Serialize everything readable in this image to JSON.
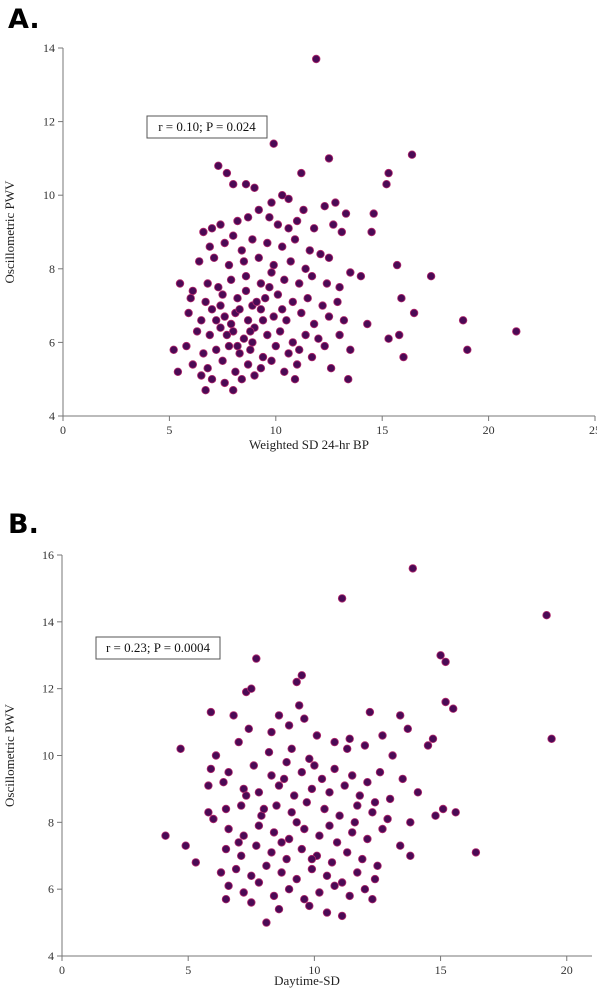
{
  "chart_data": [
    {
      "type": "scatter",
      "panel_label": "A.",
      "xlabel": "Weighted SD 24-hr BP",
      "ylabel": "Oscillometric PWV",
      "annotation": "r = 0.10; P = 0.024",
      "xlim": [
        0,
        25
      ],
      "ylim": [
        4,
        14
      ],
      "xticks": [
        0,
        5,
        10,
        15,
        20,
        25
      ],
      "yticks": [
        4,
        6,
        8,
        10,
        12,
        14
      ],
      "marker_fill": "#4b0a55",
      "marker_edge": "#b22a6e",
      "grid": false,
      "points": [
        [
          11.9,
          13.7
        ],
        [
          9.9,
          11.4
        ],
        [
          16.4,
          11.1
        ],
        [
          12.5,
          11.0
        ],
        [
          11.2,
          10.6
        ],
        [
          15.3,
          10.6
        ],
        [
          7.3,
          10.8
        ],
        [
          7.7,
          10.6
        ],
        [
          8.0,
          10.3
        ],
        [
          8.6,
          10.3
        ],
        [
          9.0,
          10.2
        ],
        [
          10.3,
          10.0
        ],
        [
          10.6,
          9.9
        ],
        [
          9.8,
          9.8
        ],
        [
          11.3,
          9.6
        ],
        [
          12.3,
          9.7
        ],
        [
          12.8,
          9.8
        ],
        [
          13.3,
          9.5
        ],
        [
          15.2,
          10.3
        ],
        [
          14.6,
          9.5
        ],
        [
          6.6,
          9.0
        ],
        [
          7.0,
          9.1
        ],
        [
          7.4,
          9.2
        ],
        [
          8.0,
          8.9
        ],
        [
          8.2,
          9.3
        ],
        [
          8.7,
          9.4
        ],
        [
          9.2,
          9.6
        ],
        [
          9.7,
          9.4
        ],
        [
          10.1,
          9.2
        ],
        [
          10.6,
          9.1
        ],
        [
          11.0,
          9.3
        ],
        [
          11.8,
          9.1
        ],
        [
          12.7,
          9.2
        ],
        [
          13.1,
          9.0
        ],
        [
          14.5,
          9.0
        ],
        [
          6.9,
          8.6
        ],
        [
          7.6,
          8.7
        ],
        [
          8.4,
          8.5
        ],
        [
          8.9,
          8.8
        ],
        [
          9.6,
          8.7
        ],
        [
          10.3,
          8.6
        ],
        [
          10.9,
          8.8
        ],
        [
          11.6,
          8.5
        ],
        [
          12.1,
          8.4
        ],
        [
          6.4,
          8.2
        ],
        [
          7.1,
          8.3
        ],
        [
          7.8,
          8.1
        ],
        [
          8.5,
          8.2
        ],
        [
          9.2,
          8.3
        ],
        [
          9.9,
          8.1
        ],
        [
          10.7,
          8.2
        ],
        [
          11.4,
          8.0
        ],
        [
          12.5,
          8.3
        ],
        [
          13.5,
          7.9
        ],
        [
          14.0,
          7.8
        ],
        [
          15.7,
          8.1
        ],
        [
          17.3,
          7.8
        ],
        [
          5.5,
          7.6
        ],
        [
          6.1,
          7.4
        ],
        [
          6.8,
          7.6
        ],
        [
          7.3,
          7.5
        ],
        [
          7.9,
          7.7
        ],
        [
          8.6,
          7.8
        ],
        [
          9.3,
          7.6
        ],
        [
          9.8,
          7.9
        ],
        [
          10.4,
          7.7
        ],
        [
          11.1,
          7.6
        ],
        [
          11.7,
          7.8
        ],
        [
          12.4,
          7.6
        ],
        [
          13.0,
          7.5
        ],
        [
          6.0,
          7.2
        ],
        [
          6.7,
          7.1
        ],
        [
          7.5,
          7.3
        ],
        [
          8.2,
          7.2
        ],
        [
          8.9,
          7.0
        ],
        [
          9.5,
          7.2
        ],
        [
          10.1,
          7.3
        ],
        [
          10.8,
          7.1
        ],
        [
          11.5,
          7.2
        ],
        [
          12.2,
          7.0
        ],
        [
          12.9,
          7.1
        ],
        [
          14.3,
          6.5
        ],
        [
          15.9,
          7.2
        ],
        [
          16.5,
          6.8
        ],
        [
          5.9,
          6.8
        ],
        [
          6.5,
          6.6
        ],
        [
          7.0,
          6.9
        ],
        [
          7.6,
          6.7
        ],
        [
          8.1,
          6.8
        ],
        [
          8.7,
          6.6
        ],
        [
          9.3,
          6.9
        ],
        [
          9.9,
          6.7
        ],
        [
          10.5,
          6.6
        ],
        [
          11.2,
          6.8
        ],
        [
          11.8,
          6.5
        ],
        [
          12.5,
          6.7
        ],
        [
          13.2,
          6.6
        ],
        [
          6.3,
          6.3
        ],
        [
          6.9,
          6.2
        ],
        [
          7.4,
          6.4
        ],
        [
          8.0,
          6.3
        ],
        [
          8.5,
          6.1
        ],
        [
          9.0,
          6.4
        ],
        [
          9.6,
          6.2
        ],
        [
          10.2,
          6.3
        ],
        [
          10.8,
          6.0
        ],
        [
          11.4,
          6.2
        ],
        [
          12.0,
          6.1
        ],
        [
          13.0,
          6.2
        ],
        [
          15.3,
          6.1
        ],
        [
          15.8,
          6.2
        ],
        [
          18.8,
          6.6
        ],
        [
          21.3,
          6.3
        ],
        [
          5.2,
          5.8
        ],
        [
          5.8,
          5.9
        ],
        [
          6.6,
          5.7
        ],
        [
          7.2,
          5.8
        ],
        [
          7.8,
          5.9
        ],
        [
          8.3,
          5.7
        ],
        [
          8.8,
          5.8
        ],
        [
          9.4,
          5.6
        ],
        [
          10.0,
          5.9
        ],
        [
          10.6,
          5.7
        ],
        [
          11.1,
          5.8
        ],
        [
          11.7,
          5.6
        ],
        [
          12.3,
          5.9
        ],
        [
          13.5,
          5.8
        ],
        [
          16.0,
          5.6
        ],
        [
          19.0,
          5.8
        ],
        [
          6.1,
          5.4
        ],
        [
          6.8,
          5.3
        ],
        [
          7.5,
          5.5
        ],
        [
          8.1,
          5.2
        ],
        [
          8.7,
          5.4
        ],
        [
          9.3,
          5.3
        ],
        [
          9.8,
          5.5
        ],
        [
          10.4,
          5.2
        ],
        [
          11.0,
          5.4
        ],
        [
          12.6,
          5.3
        ],
        [
          5.4,
          5.2
        ],
        [
          6.5,
          5.1
        ],
        [
          7.0,
          5.0
        ],
        [
          7.6,
          4.9
        ],
        [
          8.4,
          5.0
        ],
        [
          9.0,
          5.1
        ],
        [
          10.9,
          5.0
        ],
        [
          13.4,
          5.0
        ],
        [
          6.7,
          4.7
        ],
        [
          8.0,
          4.7
        ],
        [
          7.9,
          6.5
        ],
        [
          8.3,
          6.9
        ],
        [
          8.6,
          7.4
        ],
        [
          9.1,
          7.1
        ],
        [
          7.7,
          6.2
        ],
        [
          8.9,
          6.0
        ],
        [
          9.4,
          6.6
        ],
        [
          7.2,
          6.6
        ],
        [
          8.2,
          5.9
        ],
        [
          9.7,
          7.5
        ],
        [
          10.3,
          6.9
        ],
        [
          7.4,
          7.0
        ],
        [
          8.8,
          6.3
        ]
      ]
    },
    {
      "type": "scatter",
      "panel_label": "B.",
      "xlabel": "Daytime-SD",
      "ylabel": "Oscillometric PWV",
      "annotation": "r = 0.23; P = 0.0004",
      "xlim": [
        0,
        21
      ],
      "ylim": [
        4,
        16
      ],
      "xticks": [
        0,
        5,
        10,
        15,
        20
      ],
      "yticks": [
        4,
        6,
        8,
        10,
        12,
        14,
        16
      ],
      "marker_fill": "#4b0a55",
      "marker_edge": "#b22a6e",
      "grid": false,
      "points": [
        [
          13.9,
          15.6
        ],
        [
          11.1,
          14.7
        ],
        [
          19.2,
          14.2
        ],
        [
          15.0,
          13.0
        ],
        [
          15.2,
          12.8
        ],
        [
          7.7,
          12.9
        ],
        [
          9.5,
          12.4
        ],
        [
          9.3,
          12.2
        ],
        [
          7.3,
          11.9
        ],
        [
          7.5,
          12.0
        ],
        [
          15.2,
          11.6
        ],
        [
          15.5,
          11.4
        ],
        [
          5.9,
          11.3
        ],
        [
          6.8,
          11.2
        ],
        [
          8.6,
          11.2
        ],
        [
          9.4,
          11.5
        ],
        [
          9.6,
          11.1
        ],
        [
          12.2,
          11.3
        ],
        [
          13.4,
          11.2
        ],
        [
          7.4,
          10.8
        ],
        [
          8.3,
          10.7
        ],
        [
          9.0,
          10.9
        ],
        [
          10.1,
          10.6
        ],
        [
          11.4,
          10.5
        ],
        [
          12.7,
          10.6
        ],
        [
          13.7,
          10.8
        ],
        [
          14.7,
          10.5
        ],
        [
          19.4,
          10.5
        ],
        [
          4.7,
          10.2
        ],
        [
          6.1,
          10.0
        ],
        [
          7.0,
          10.4
        ],
        [
          8.2,
          10.1
        ],
        [
          9.1,
          10.2
        ],
        [
          9.8,
          9.9
        ],
        [
          10.8,
          10.4
        ],
        [
          11.3,
          10.2
        ],
        [
          12.0,
          10.3
        ],
        [
          13.1,
          10.0
        ],
        [
          14.5,
          10.3
        ],
        [
          5.9,
          9.6
        ],
        [
          6.6,
          9.5
        ],
        [
          7.6,
          9.7
        ],
        [
          8.3,
          9.4
        ],
        [
          8.9,
          9.8
        ],
        [
          9.5,
          9.5
        ],
        [
          10.0,
          9.7
        ],
        [
          10.8,
          9.6
        ],
        [
          11.5,
          9.4
        ],
        [
          12.1,
          9.2
        ],
        [
          12.6,
          9.5
        ],
        [
          13.5,
          9.3
        ],
        [
          5.8,
          9.1
        ],
        [
          6.4,
          9.2
        ],
        [
          7.2,
          9.0
        ],
        [
          7.8,
          8.9
        ],
        [
          8.6,
          9.1
        ],
        [
          9.2,
          8.8
        ],
        [
          9.9,
          9.0
        ],
        [
          10.6,
          8.9
        ],
        [
          11.2,
          9.1
        ],
        [
          11.8,
          8.8
        ],
        [
          12.4,
          8.6
        ],
        [
          13.0,
          8.7
        ],
        [
          14.1,
          8.9
        ],
        [
          5.8,
          8.3
        ],
        [
          6.5,
          8.4
        ],
        [
          7.1,
          8.5
        ],
        [
          7.9,
          8.2
        ],
        [
          8.5,
          8.5
        ],
        [
          9.1,
          8.3
        ],
        [
          9.7,
          8.6
        ],
        [
          10.4,
          8.4
        ],
        [
          11.0,
          8.2
        ],
        [
          11.7,
          8.5
        ],
        [
          12.3,
          8.3
        ],
        [
          12.9,
          8.1
        ],
        [
          13.8,
          8.0
        ],
        [
          14.8,
          8.2
        ],
        [
          15.1,
          8.4
        ],
        [
          15.6,
          8.3
        ],
        [
          4.1,
          7.6
        ],
        [
          4.9,
          7.3
        ],
        [
          6.0,
          8.1
        ],
        [
          6.6,
          7.8
        ],
        [
          7.2,
          7.6
        ],
        [
          7.8,
          7.9
        ],
        [
          8.4,
          7.7
        ],
        [
          9.0,
          7.5
        ],
        [
          9.6,
          7.8
        ],
        [
          10.2,
          7.6
        ],
        [
          10.9,
          7.4
        ],
        [
          11.5,
          7.7
        ],
        [
          12.1,
          7.5
        ],
        [
          12.7,
          7.8
        ],
        [
          13.4,
          7.3
        ],
        [
          6.5,
          7.2
        ],
        [
          7.1,
          7.0
        ],
        [
          7.7,
          7.3
        ],
        [
          8.3,
          7.1
        ],
        [
          8.9,
          6.9
        ],
        [
          9.5,
          7.2
        ],
        [
          10.1,
          7.0
        ],
        [
          10.7,
          6.8
        ],
        [
          11.3,
          7.1
        ],
        [
          11.9,
          6.9
        ],
        [
          12.5,
          6.7
        ],
        [
          13.8,
          7.0
        ],
        [
          16.4,
          7.1
        ],
        [
          5.3,
          6.8
        ],
        [
          6.3,
          6.5
        ],
        [
          6.9,
          6.6
        ],
        [
          7.5,
          6.4
        ],
        [
          8.1,
          6.7
        ],
        [
          8.7,
          6.5
        ],
        [
          9.3,
          6.3
        ],
        [
          9.9,
          6.6
        ],
        [
          10.5,
          6.4
        ],
        [
          11.1,
          6.2
        ],
        [
          11.7,
          6.5
        ],
        [
          12.4,
          6.3
        ],
        [
          6.6,
          6.1
        ],
        [
          7.2,
          5.9
        ],
        [
          7.8,
          6.2
        ],
        [
          8.4,
          5.8
        ],
        [
          9.0,
          6.0
        ],
        [
          9.6,
          5.7
        ],
        [
          10.2,
          5.9
        ],
        [
          10.8,
          6.1
        ],
        [
          11.4,
          5.8
        ],
        [
          12.0,
          6.0
        ],
        [
          6.5,
          5.7
        ],
        [
          7.5,
          5.6
        ],
        [
          8.6,
          5.4
        ],
        [
          9.8,
          5.5
        ],
        [
          10.5,
          5.3
        ],
        [
          11.1,
          5.2
        ],
        [
          12.3,
          5.7
        ],
        [
          8.1,
          5.0
        ],
        [
          9.3,
          8.0
        ],
        [
          8.0,
          8.4
        ],
        [
          10.6,
          7.9
        ],
        [
          8.7,
          7.4
        ],
        [
          9.9,
          6.9
        ],
        [
          7.3,
          8.8
        ],
        [
          11.6,
          8.0
        ],
        [
          8.8,
          9.3
        ],
        [
          10.3,
          9.3
        ],
        [
          7.0,
          7.4
        ]
      ]
    }
  ]
}
